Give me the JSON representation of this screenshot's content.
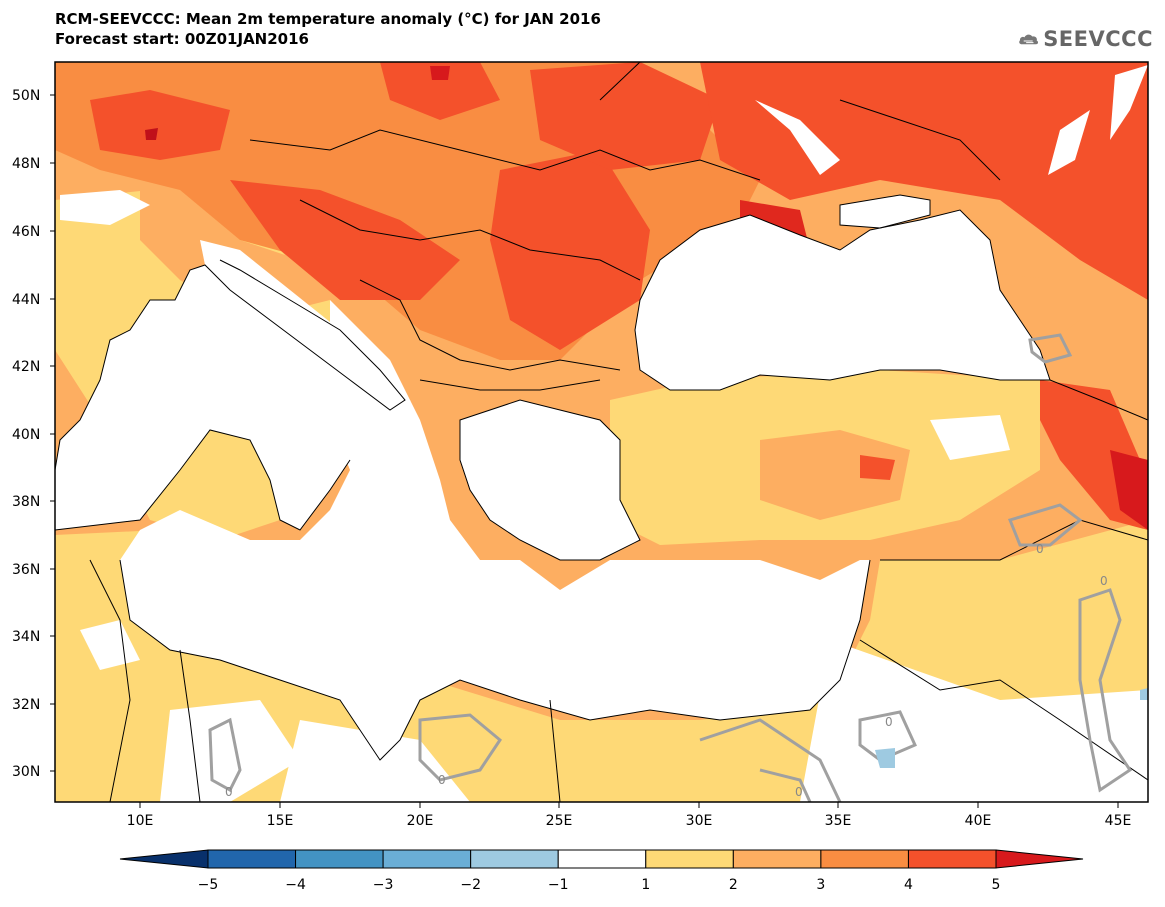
{
  "header": {
    "title": "RCM-SEEVCCC: Mean 2m temperature anomaly (°C) for JAN 2016",
    "subtitle": "Forecast start: 00Z01JAN2016"
  },
  "logo": {
    "text": "SEEVCCC",
    "icon": "cloud-icon"
  },
  "axes": {
    "lat_labels": [
      "50N",
      "48N",
      "46N",
      "44N",
      "42N",
      "40N",
      "38N",
      "36N",
      "34N",
      "32N",
      "30N"
    ],
    "lon_labels": [
      "10E",
      "15E",
      "20E",
      "25E",
      "30E",
      "35E",
      "40E",
      "45E"
    ]
  },
  "contour_labels": [
    "0",
    "0",
    "0",
    "0",
    "0",
    "0"
  ],
  "colorbar": {
    "ticks": [
      "−5",
      "−4",
      "−3",
      "−2",
      "−1",
      "1",
      "2",
      "3",
      "4",
      "5"
    ],
    "colors": [
      "#08306b",
      "#2166ac",
      "#4393c3",
      "#6aaed6",
      "#9ecae1",
      "#ffffff",
      "#fed976",
      "#fdae61",
      "#f98d42",
      "#f4512b",
      "#d7191c"
    ]
  },
  "palette": {
    "sea": "#ffffff",
    "anom_1_2": "#fed976",
    "anom_2_3": "#fdae61",
    "anom_3_4": "#f98d42",
    "anom_4_5": "#f4512b",
    "anom_gt5": "#e0281e",
    "zero_contour": "#a0a0a0"
  }
}
